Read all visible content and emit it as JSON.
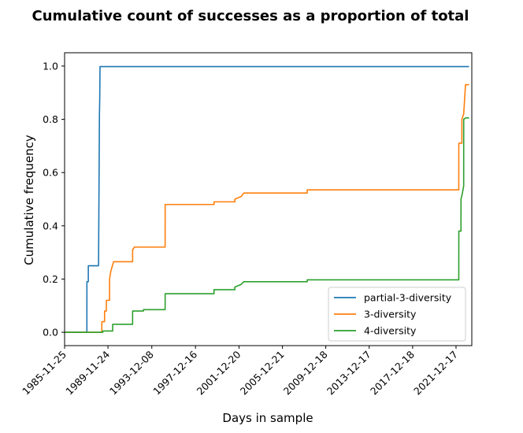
{
  "chart_data": {
    "type": "line",
    "title": "Cumulative count of successes as a proportion of total",
    "xlabel": "Days in sample",
    "ylabel": "Cumulative frequency",
    "x_scale": "date",
    "xlim": [
      "1985-11-25",
      "2023-06-01"
    ],
    "ylim": [
      -0.05,
      1.05
    ],
    "x_ticks": [
      "1985-11-25",
      "1989-11-24",
      "1993-12-08",
      "1997-12-16",
      "2001-12-20",
      "2005-12-21",
      "2009-12-18",
      "2013-12-17",
      "2017-12-18",
      "2021-12-17"
    ],
    "y_ticks": [
      "0.0",
      "0.2",
      "0.4",
      "0.6",
      "0.8",
      "1.0"
    ],
    "grid": false,
    "legend_position": "lower right",
    "series": [
      {
        "name": "partial-3-diversity",
        "color": "#1f77b4",
        "points": [
          [
            "1985-11-25",
            0.0
          ],
          [
            "1987-12-15",
            0.0
          ],
          [
            "1987-12-16",
            0.19
          ],
          [
            "1988-02-01",
            0.19
          ],
          [
            "1988-02-02",
            0.25
          ],
          [
            "1989-01-10",
            0.25
          ],
          [
            "1989-01-11",
            0.26
          ],
          [
            "1989-02-10",
            0.82
          ],
          [
            "1989-02-20",
            0.88
          ],
          [
            "1989-03-01",
            0.998
          ],
          [
            "2023-03-01",
            0.998
          ]
        ]
      },
      {
        "name": "3-diversity",
        "color": "#ff7f0e",
        "points": [
          [
            "1985-11-25",
            0.0
          ],
          [
            "1989-05-01",
            0.0
          ],
          [
            "1989-05-02",
            0.04
          ],
          [
            "1989-08-01",
            0.04
          ],
          [
            "1989-08-02",
            0.08
          ],
          [
            "1989-10-01",
            0.08
          ],
          [
            "1989-10-02",
            0.12
          ],
          [
            "1990-01-15",
            0.12
          ],
          [
            "1990-01-16",
            0.2
          ],
          [
            "1990-03-01",
            0.23
          ],
          [
            "1990-06-01",
            0.265
          ],
          [
            "1992-03-01",
            0.265
          ],
          [
            "1992-03-02",
            0.31
          ],
          [
            "1992-05-01",
            0.32
          ],
          [
            "1995-03-01",
            0.32
          ],
          [
            "1995-03-02",
            0.48
          ],
          [
            "1999-09-01",
            0.48
          ],
          [
            "1999-09-02",
            0.49
          ],
          [
            "2001-08-01",
            0.49
          ],
          [
            "2001-08-02",
            0.5
          ],
          [
            "2002-03-01",
            0.51
          ],
          [
            "2002-06-01",
            0.523
          ],
          [
            "2008-04-01",
            0.523
          ],
          [
            "2008-04-02",
            0.535
          ],
          [
            "2022-03-20",
            0.535
          ],
          [
            "2022-03-21",
            0.71
          ],
          [
            "2022-07-01",
            0.71
          ],
          [
            "2022-07-02",
            0.8
          ],
          [
            "2022-09-01",
            0.82
          ],
          [
            "2022-11-01",
            0.93
          ],
          [
            "2023-03-01",
            0.93
          ]
        ]
      },
      {
        "name": "4-diversity",
        "color": "#2ca02c",
        "points": [
          [
            "1985-11-25",
            0.0
          ],
          [
            "1989-06-01",
            0.0
          ],
          [
            "1989-06-02",
            0.005
          ],
          [
            "1990-05-01",
            0.005
          ],
          [
            "1990-05-02",
            0.03
          ],
          [
            "1992-03-01",
            0.03
          ],
          [
            "1992-03-02",
            0.08
          ],
          [
            "1993-03-01",
            0.08
          ],
          [
            "1993-03-02",
            0.085
          ],
          [
            "1995-03-01",
            0.085
          ],
          [
            "1995-03-02",
            0.145
          ],
          [
            "1999-09-01",
            0.145
          ],
          [
            "1999-09-02",
            0.16
          ],
          [
            "2001-08-01",
            0.16
          ],
          [
            "2001-08-02",
            0.17
          ],
          [
            "2002-03-01",
            0.18
          ],
          [
            "2002-06-01",
            0.19
          ],
          [
            "2008-04-01",
            0.19
          ],
          [
            "2008-04-02",
            0.197
          ],
          [
            "2022-03-20",
            0.197
          ],
          [
            "2022-03-21",
            0.38
          ],
          [
            "2022-06-01",
            0.38
          ],
          [
            "2022-06-02",
            0.5
          ],
          [
            "2022-07-15",
            0.52
          ],
          [
            "2022-09-01",
            0.55
          ],
          [
            "2022-09-02",
            0.8
          ],
          [
            "2022-11-01",
            0.805
          ],
          [
            "2023-03-01",
            0.805
          ]
        ]
      }
    ]
  }
}
